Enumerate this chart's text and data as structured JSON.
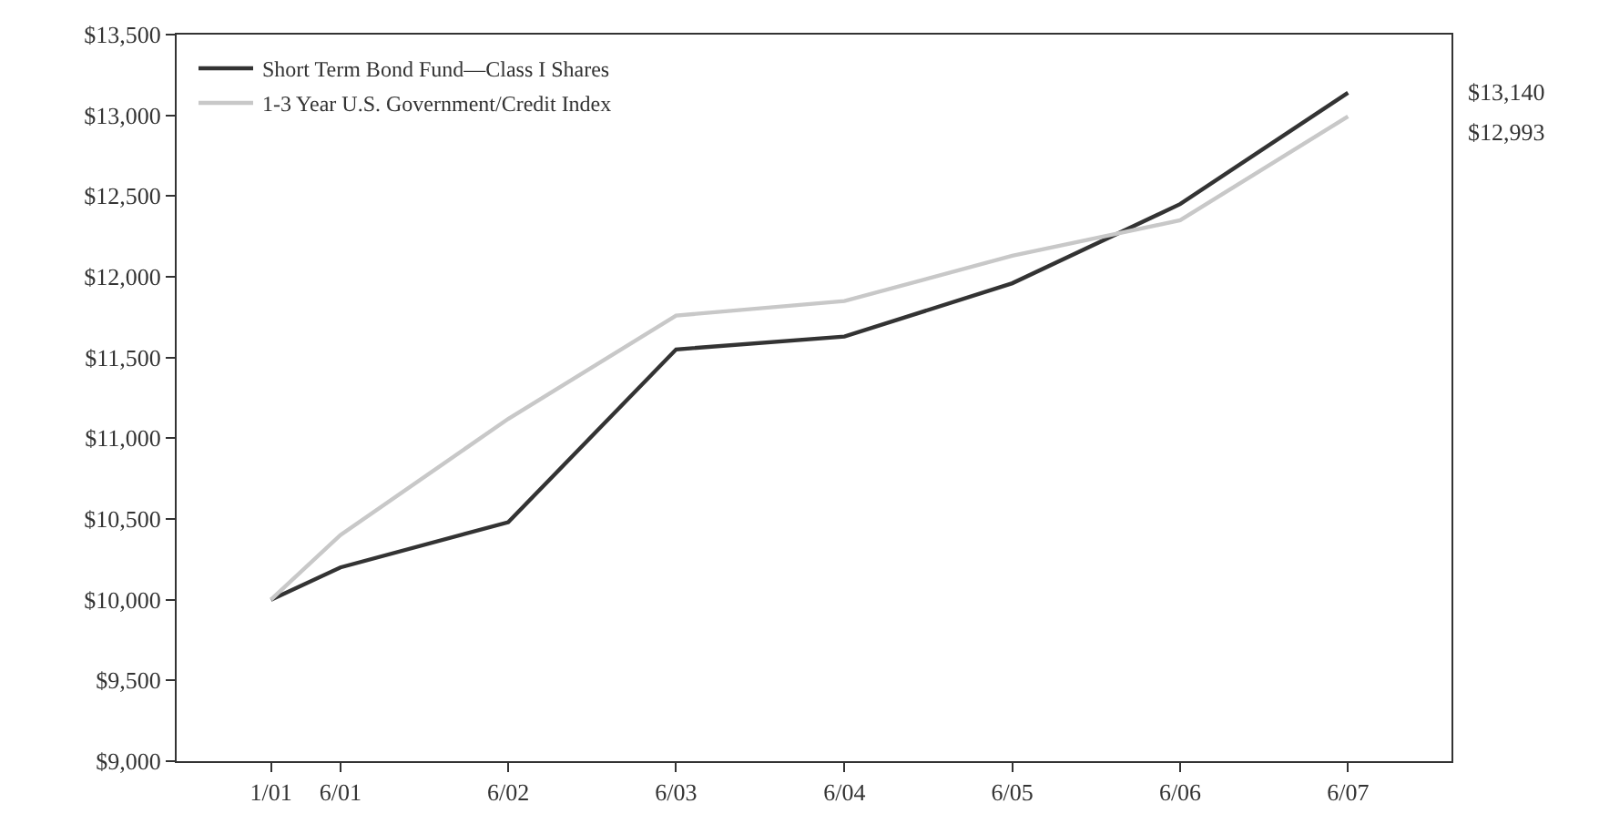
{
  "chart_data": {
    "type": "line",
    "x": [
      "2001-01",
      "2001-06",
      "2002-06",
      "2003-06",
      "2004-06",
      "2005-06",
      "2006-06",
      "2007-06"
    ],
    "series": [
      {
        "name": "Short Term Bond Fund—Class I Shares",
        "color": "#333333",
        "values": [
          10000,
          10200,
          10480,
          11550,
          11630,
          11960,
          12450,
          13140
        ]
      },
      {
        "name": "1-3 Year U.S. Government/Credit Index",
        "color": "#c8c8c8",
        "values": [
          10000,
          10400,
          11120,
          11760,
          11850,
          12130,
          12350,
          12993
        ]
      }
    ],
    "xlim": [
      "2000-06-10",
      "2008-01-12"
    ],
    "xticks": [
      {
        "value": "2001-01",
        "label": "1/01"
      },
      {
        "value": "2001-06",
        "label": "6/01"
      },
      {
        "value": "2002-06",
        "label": "6/02"
      },
      {
        "value": "2003-06",
        "label": "6/03"
      },
      {
        "value": "2004-06",
        "label": "6/04"
      },
      {
        "value": "2005-06",
        "label": "6/05"
      },
      {
        "value": "2006-06",
        "label": "6/06"
      },
      {
        "value": "2007-06",
        "label": "6/07"
      }
    ],
    "ylim": [
      9000,
      13500
    ],
    "yticks": [
      {
        "value": 9000,
        "label": "$9,000"
      },
      {
        "value": 9500,
        "label": "$9,500"
      },
      {
        "value": 10000,
        "label": "$10,000"
      },
      {
        "value": 10500,
        "label": "$10,500"
      },
      {
        "value": 11000,
        "label": "$11,000"
      },
      {
        "value": 11500,
        "label": "$11,500"
      },
      {
        "value": 12000,
        "label": "$12,000"
      },
      {
        "value": 12500,
        "label": "$12,500"
      },
      {
        "value": 13000,
        "label": "$13,000"
      },
      {
        "value": 13500,
        "label": "$13,500"
      }
    ],
    "annotations": [
      "$13,140",
      "$12,993"
    ],
    "legend": "top left",
    "marker": "none",
    "line_style": "solid"
  }
}
